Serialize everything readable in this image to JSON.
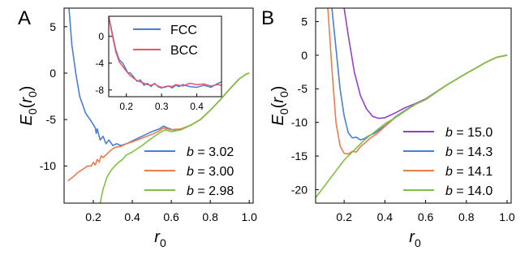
{
  "figure": {
    "panel_labels": [
      "A",
      "B"
    ]
  },
  "chart_data": [
    {
      "type": "line",
      "panel": "A",
      "xlabel": "r0",
      "ylabel": "E0(r0)",
      "xlim": [
        0.05,
        1.02
      ],
      "ylim": [
        -14,
        7
      ],
      "xticks": [
        0.2,
        0.4,
        0.6,
        0.8,
        1.0
      ],
      "yticks": [
        5,
        0,
        -5,
        -10
      ],
      "legend_position": "lower-right",
      "series": [
        {
          "name": "b = 3.02",
          "b": "3.02",
          "color": "#4a7fd4",
          "points": [
            [
              0.075,
              7
            ],
            [
              0.09,
              3
            ],
            [
              0.11,
              0
            ],
            [
              0.13,
              -2.5
            ],
            [
              0.16,
              -4.3
            ],
            [
              0.19,
              -5.2
            ],
            [
              0.21,
              -5.9
            ],
            [
              0.215,
              -6.5
            ],
            [
              0.22,
              -6.0
            ],
            [
              0.235,
              -7.2
            ],
            [
              0.25,
              -6.8
            ],
            [
              0.265,
              -7.6
            ],
            [
              0.28,
              -7.2
            ],
            [
              0.3,
              -7.8
            ],
            [
              0.32,
              -7.6
            ],
            [
              0.34,
              -7.8
            ],
            [
              0.37,
              -7.6
            ],
            [
              0.4,
              -7.3
            ],
            [
              0.43,
              -7.0
            ],
            [
              0.47,
              -6.6
            ],
            [
              0.5,
              -6.3
            ],
            [
              0.54,
              -6.0
            ],
            [
              0.56,
              -5.7
            ],
            [
              0.58,
              -5.9
            ],
            [
              0.62,
              -6.2
            ],
            [
              0.65,
              -6.1
            ],
            [
              0.7,
              -5.6
            ],
            [
              0.75,
              -5.0
            ],
            [
              0.8,
              -4.0
            ],
            [
              0.85,
              -2.9
            ],
            [
              0.9,
              -1.7
            ],
            [
              0.95,
              -0.6
            ],
            [
              0.985,
              -0.1
            ],
            [
              1.0,
              0.0
            ]
          ]
        },
        {
          "name": "b = 3.00",
          "b": "3.00",
          "color": "#ec7c4e",
          "points": [
            [
              0.07,
              -11.6
            ],
            [
              0.1,
              -11.1
            ],
            [
              0.12,
              -10.7
            ],
            [
              0.15,
              -10.3
            ],
            [
              0.17,
              -10.0
            ],
            [
              0.19,
              -10.0
            ],
            [
              0.2,
              -9.6
            ],
            [
              0.21,
              -9.9
            ],
            [
              0.22,
              -9.3
            ],
            [
              0.23,
              -9.6
            ],
            [
              0.24,
              -8.9
            ],
            [
              0.25,
              -9.1
            ],
            [
              0.27,
              -8.7
            ],
            [
              0.29,
              -8.3
            ],
            [
              0.31,
              -8.0
            ],
            [
              0.34,
              -7.9
            ],
            [
              0.37,
              -7.6
            ],
            [
              0.4,
              -7.4
            ],
            [
              0.45,
              -7.0
            ],
            [
              0.5,
              -6.6
            ],
            [
              0.54,
              -6.2
            ],
            [
              0.56,
              -5.9
            ],
            [
              0.6,
              -6.1
            ],
            [
              0.65,
              -6.0
            ],
            [
              0.7,
              -5.6
            ],
            [
              0.75,
              -5.0
            ],
            [
              0.8,
              -4.0
            ],
            [
              0.85,
              -2.9
            ],
            [
              0.9,
              -1.7
            ],
            [
              0.95,
              -0.6
            ],
            [
              0.985,
              -0.1
            ],
            [
              1.0,
              0.0
            ]
          ]
        },
        {
          "name": "b = 2.98",
          "b": "2.98",
          "color": "#7fc241",
          "points": [
            [
              0.235,
              -14
            ],
            [
              0.25,
              -12.5
            ],
            [
              0.27,
              -11.2
            ],
            [
              0.29,
              -10.5
            ],
            [
              0.31,
              -10.0
            ],
            [
              0.33,
              -9.6
            ],
            [
              0.35,
              -9.3
            ],
            [
              0.37,
              -8.8
            ],
            [
              0.4,
              -8.5
            ],
            [
              0.45,
              -7.8
            ],
            [
              0.5,
              -7.0
            ],
            [
              0.55,
              -6.3
            ],
            [
              0.57,
              -6.1
            ],
            [
              0.6,
              -6.3
            ],
            [
              0.65,
              -6.1
            ],
            [
              0.7,
              -5.6
            ],
            [
              0.75,
              -5.0
            ],
            [
              0.8,
              -4.0
            ],
            [
              0.85,
              -2.9
            ],
            [
              0.9,
              -1.7
            ],
            [
              0.95,
              -0.6
            ],
            [
              0.985,
              -0.1
            ],
            [
              1.0,
              0.0
            ]
          ]
        }
      ]
    },
    {
      "type": "line",
      "panel": "A-inset",
      "xlim": [
        0.15,
        0.47
      ],
      "ylim": [
        -9,
        3
      ],
      "xticks": [
        0.2,
        0.3,
        0.4
      ],
      "yticks": [
        0,
        -4,
        -8
      ],
      "legend_position": "top-right",
      "series": [
        {
          "name": "FCC",
          "color": "#4a7fd4",
          "points": [
            [
              0.15,
              3
            ],
            [
              0.16,
              0.5
            ],
            [
              0.17,
              -2.0
            ],
            [
              0.18,
              -3.5
            ],
            [
              0.19,
              -4.0
            ],
            [
              0.2,
              -5.0
            ],
            [
              0.205,
              -5.5
            ],
            [
              0.21,
              -5.4
            ],
            [
              0.22,
              -6.0
            ],
            [
              0.23,
              -6.7
            ],
            [
              0.24,
              -6.5
            ],
            [
              0.25,
              -7.3
            ],
            [
              0.26,
              -7.0
            ],
            [
              0.27,
              -7.5
            ],
            [
              0.28,
              -7.0
            ],
            [
              0.29,
              -7.5
            ],
            [
              0.3,
              -7.7
            ],
            [
              0.31,
              -7.5
            ],
            [
              0.32,
              -7.4
            ],
            [
              0.33,
              -7.7
            ],
            [
              0.34,
              -7.3
            ],
            [
              0.35,
              -7.5
            ],
            [
              0.36,
              -7.2
            ],
            [
              0.38,
              -7.5
            ],
            [
              0.4,
              -7.6
            ],
            [
              0.42,
              -7.3
            ],
            [
              0.44,
              -7.6
            ],
            [
              0.46,
              -7.0
            ],
            [
              0.47,
              -6.8
            ]
          ]
        },
        {
          "name": "BCC",
          "color": "#e8556d",
          "points": [
            [
              0.15,
              3
            ],
            [
              0.16,
              0.2
            ],
            [
              0.17,
              -2.3
            ],
            [
              0.18,
              -3.8
            ],
            [
              0.19,
              -4.5
            ],
            [
              0.2,
              -5.2
            ],
            [
              0.21,
              -5.8
            ],
            [
              0.22,
              -6.2
            ],
            [
              0.23,
              -6.6
            ],
            [
              0.24,
              -6.8
            ],
            [
              0.25,
              -7.0
            ],
            [
              0.26,
              -7.2
            ],
            [
              0.27,
              -7.3
            ],
            [
              0.28,
              -7.1
            ],
            [
              0.29,
              -7.4
            ],
            [
              0.3,
              -7.6
            ],
            [
              0.31,
              -7.6
            ],
            [
              0.32,
              -7.4
            ],
            [
              0.33,
              -7.5
            ],
            [
              0.34,
              -7.2
            ],
            [
              0.35,
              -7.3
            ],
            [
              0.36,
              -7.4
            ],
            [
              0.38,
              -7.0
            ],
            [
              0.4,
              -7.2
            ],
            [
              0.42,
              -7.1
            ],
            [
              0.44,
              -7.4
            ],
            [
              0.46,
              -7.2
            ],
            [
              0.47,
              -7.3
            ]
          ]
        }
      ]
    },
    {
      "type": "line",
      "panel": "B",
      "xlabel": "r0",
      "ylabel": "E0(r0)",
      "xlim": [
        0.06,
        1.02
      ],
      "ylim": [
        -22,
        7
      ],
      "xticks": [
        0.2,
        0.4,
        0.6,
        0.8,
        1.0
      ],
      "yticks": [
        5,
        0,
        -5,
        -10,
        -15,
        -20
      ],
      "legend_position": "lower-right",
      "series": [
        {
          "name": "b = 15.0",
          "b": "15.0",
          "color": "#9640c8",
          "points": [
            [
              0.2,
              7
            ],
            [
              0.22,
              3
            ],
            [
              0.25,
              -2.5
            ],
            [
              0.28,
              -6
            ],
            [
              0.31,
              -8
            ],
            [
              0.34,
              -9.1
            ],
            [
              0.37,
              -9.4
            ],
            [
              0.4,
              -9.3
            ],
            [
              0.45,
              -8.6
            ],
            [
              0.5,
              -7.8
            ],
            [
              0.55,
              -7.2
            ],
            [
              0.6,
              -6.5
            ],
            [
              0.7,
              -4.5
            ],
            [
              0.8,
              -2.7
            ],
            [
              0.9,
              -1.0
            ],
            [
              0.95,
              -0.3
            ],
            [
              1.0,
              0.0
            ]
          ]
        },
        {
          "name": "b = 14.3",
          "b": "14.3",
          "color": "#4a7fd4",
          "points": [
            [
              0.14,
              7
            ],
            [
              0.16,
              1
            ],
            [
              0.18,
              -5
            ],
            [
              0.2,
              -9
            ],
            [
              0.22,
              -11.5
            ],
            [
              0.24,
              -12.3
            ],
            [
              0.26,
              -12.2
            ],
            [
              0.28,
              -12.6
            ],
            [
              0.3,
              -12.4
            ],
            [
              0.32,
              -12.0
            ],
            [
              0.35,
              -11.6
            ],
            [
              0.4,
              -10.5
            ],
            [
              0.45,
              -9.2
            ],
            [
              0.5,
              -8.2
            ],
            [
              0.55,
              -7.3
            ],
            [
              0.6,
              -6.6
            ],
            [
              0.7,
              -4.5
            ],
            [
              0.8,
              -2.7
            ],
            [
              0.9,
              -1.0
            ],
            [
              0.95,
              -0.3
            ],
            [
              1.0,
              0.0
            ]
          ]
        },
        {
          "name": "b = 14.1",
          "b": "14.1",
          "color": "#ec7c4e",
          "points": [
            [
              0.12,
              7
            ],
            [
              0.14,
              -2
            ],
            [
              0.16,
              -10
            ],
            [
              0.18,
              -13.5
            ],
            [
              0.2,
              -14.6
            ],
            [
              0.22,
              -14.7
            ],
            [
              0.24,
              -14.3
            ],
            [
              0.26,
              -14.4
            ],
            [
              0.28,
              -13.6
            ],
            [
              0.3,
              -13.1
            ],
            [
              0.33,
              -12.3
            ],
            [
              0.36,
              -11.7
            ],
            [
              0.4,
              -10.6
            ],
            [
              0.45,
              -9.3
            ],
            [
              0.5,
              -8.3
            ],
            [
              0.55,
              -7.3
            ],
            [
              0.6,
              -6.6
            ],
            [
              0.7,
              -4.5
            ],
            [
              0.8,
              -2.7
            ],
            [
              0.9,
              -1.0
            ],
            [
              0.95,
              -0.3
            ],
            [
              1.0,
              0.0
            ]
          ]
        },
        {
          "name": "b = 14.0",
          "b": "14.0",
          "color": "#7fc241",
          "points": [
            [
              0.06,
              -21.2
            ],
            [
              0.1,
              -19.6
            ],
            [
              0.15,
              -17.6
            ],
            [
              0.2,
              -15.6
            ],
            [
              0.25,
              -14.1
            ],
            [
              0.3,
              -12.6
            ],
            [
              0.35,
              -11.4
            ],
            [
              0.4,
              -10.2
            ],
            [
              0.45,
              -9.3
            ],
            [
              0.5,
              -8.3
            ],
            [
              0.55,
              -7.3
            ],
            [
              0.6,
              -6.6
            ],
            [
              0.7,
              -4.5
            ],
            [
              0.8,
              -2.7
            ],
            [
              0.9,
              -1.0
            ],
            [
              0.95,
              -0.3
            ],
            [
              1.0,
              0.0
            ]
          ]
        }
      ]
    }
  ]
}
